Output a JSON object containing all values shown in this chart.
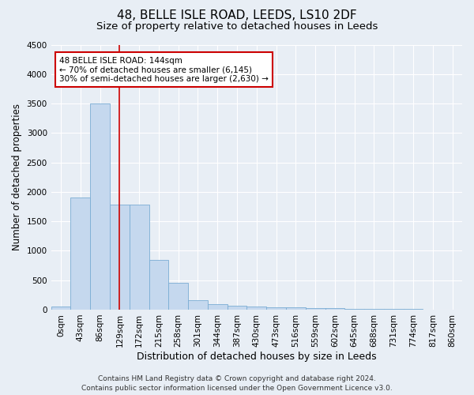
{
  "title1": "48, BELLE ISLE ROAD, LEEDS, LS10 2DF",
  "title2": "Size of property relative to detached houses in Leeds",
  "xlabel": "Distribution of detached houses by size in Leeds",
  "ylabel": "Number of detached properties",
  "footer1": "Contains HM Land Registry data © Crown copyright and database right 2024.",
  "footer2": "Contains public sector information licensed under the Open Government Licence v3.0.",
  "annotation_line1": "48 BELLE ISLE ROAD: 144sqm",
  "annotation_line2": "← 70% of detached houses are smaller (6,145)",
  "annotation_line3": "30% of semi-detached houses are larger (2,630) →",
  "bar_color": "#c5d8ee",
  "bar_edge_color": "#7aadd4",
  "vline_color": "#cc0000",
  "vline_x": 3.0,
  "categories": [
    "0sqm",
    "43sqm",
    "86sqm",
    "129sqm",
    "172sqm",
    "215sqm",
    "258sqm",
    "301sqm",
    "344sqm",
    "387sqm",
    "430sqm",
    "473sqm",
    "516sqm",
    "559sqm",
    "602sqm",
    "645sqm",
    "688sqm",
    "731sqm",
    "774sqm",
    "817sqm",
    "860sqm"
  ],
  "values": [
    50,
    1900,
    3500,
    1780,
    1780,
    840,
    455,
    160,
    100,
    65,
    55,
    45,
    35,
    30,
    20,
    15,
    15,
    10,
    8,
    5,
    5
  ],
  "ylim": [
    0,
    4500
  ],
  "yticks": [
    0,
    500,
    1000,
    1500,
    2000,
    2500,
    3000,
    3500,
    4000,
    4500
  ],
  "background_color": "#e8eef5",
  "plot_background": "#e8eef5",
  "grid_color": "#ffffff",
  "annotation_box_facecolor": "#ffffff",
  "annotation_box_edge": "#cc0000",
  "title1_fontsize": 11,
  "title2_fontsize": 9.5,
  "xlabel_fontsize": 9,
  "ylabel_fontsize": 8.5,
  "tick_fontsize": 7.5,
  "footer_fontsize": 6.5,
  "annot_fontsize": 7.5
}
